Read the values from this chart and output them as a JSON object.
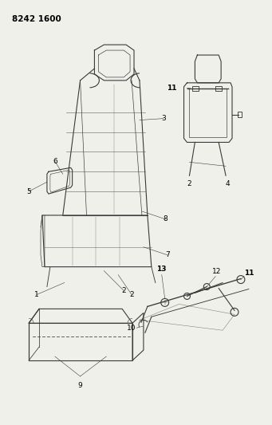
{
  "title_text": "8242 1600",
  "background_color": "#f0f0eb",
  "line_color": "#3a3a3a",
  "label_color": "#000000",
  "figsize": [
    3.41,
    5.33
  ],
  "dpi": 100
}
